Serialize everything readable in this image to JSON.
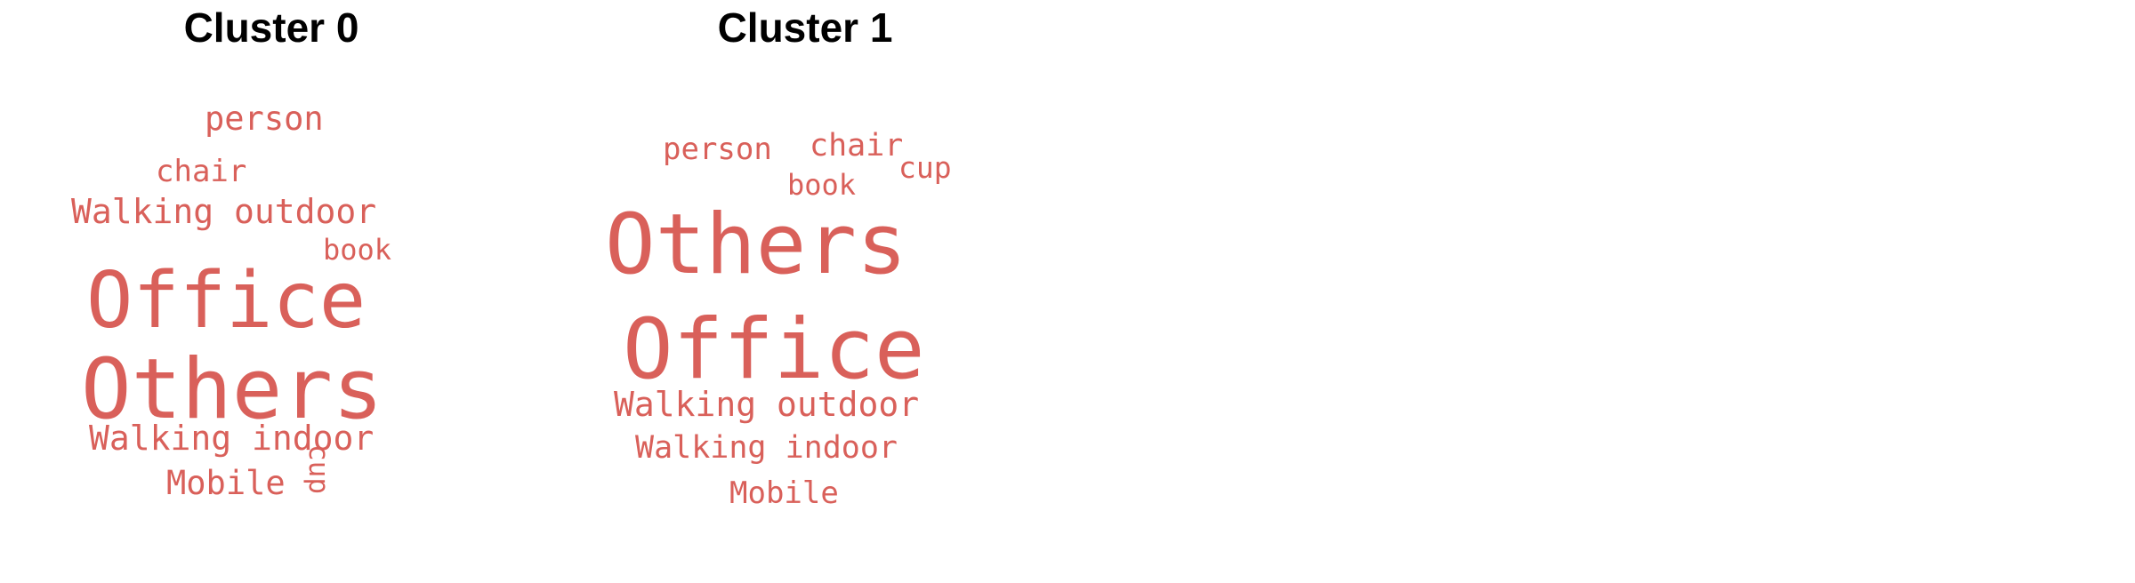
{
  "chart_data": [
    {
      "type": "wordcloud",
      "title": "Cluster 0",
      "color": "#d9605a",
      "words": [
        {
          "text": "person",
          "weight": 0.3
        },
        {
          "text": "chair",
          "weight": 0.28
        },
        {
          "text": "Walking outdoor",
          "weight": 0.31
        },
        {
          "text": "book",
          "weight": 0.26
        },
        {
          "text": "Office",
          "weight": 0.71
        },
        {
          "text": "Others",
          "weight": 0.77
        },
        {
          "text": "Walking indoor",
          "weight": 0.31
        },
        {
          "text": "Mobile",
          "weight": 0.3
        },
        {
          "text": "cup",
          "weight": 0.25,
          "rotated": true
        }
      ]
    },
    {
      "type": "wordcloud",
      "title": "Cluster 1",
      "color": "#d9605a",
      "words": [
        {
          "text": "person",
          "weight": 0.28
        },
        {
          "text": "chair",
          "weight": 0.29
        },
        {
          "text": "cup",
          "weight": 0.27
        },
        {
          "text": "book",
          "weight": 0.26
        },
        {
          "text": "Others",
          "weight": 0.77
        },
        {
          "text": "Office",
          "weight": 0.77
        },
        {
          "text": "Walking outdoor",
          "weight": 0.31
        },
        {
          "text": "Walking indoor",
          "weight": 0.29
        },
        {
          "text": "Mobile",
          "weight": 0.28
        }
      ]
    }
  ]
}
